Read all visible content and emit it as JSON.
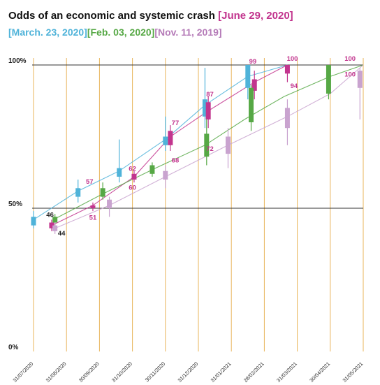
{
  "chart_data": {
    "type": "candlestick-line",
    "title_prefix": "Odds of an economic and systemic crash ",
    "title_series_labels": [
      {
        "text": "[June 29, 2020]",
        "color": "#c2358e"
      },
      {
        "text": "[March. 23, 2020]",
        "color": "#4fb3d9"
      },
      {
        "text": "[Feb. 03, 2020]",
        "color": "#56a845"
      },
      {
        "text": "[Nov. 11, 2019]",
        "color": "#b57bb8"
      }
    ],
    "x_dates": [
      "31/07/2020",
      "31/08/2020",
      "30/09/2020",
      "31/10/2020",
      "30/11/2020",
      "31/12/2020",
      "31/01/2021",
      "28/02/2021",
      "31/03/2021",
      "30/04/2021",
      "31/05/2021"
    ],
    "ylim": [
      0,
      100
    ],
    "y_ticks": [
      {
        "value": 0,
        "label": "0%"
      },
      {
        "value": 50,
        "label": "50%"
      },
      {
        "value": 100,
        "label": "100%"
      }
    ],
    "colors": {
      "jun": "#c2358e",
      "mar": "#4fb3d9",
      "feb": "#56a845",
      "nov": "#c9a3cf",
      "grid_v": "#e8b45a",
      "grid_h": "#333333"
    },
    "series": [
      {
        "key": "mar",
        "color": "#4fb3d9",
        "line": [
          {
            "x": 0,
            "y": 46
          },
          {
            "x": 1.35,
            "y": 56
          },
          {
            "x": 2.6,
            "y": 63
          },
          {
            "x": 4,
            "y": 74
          },
          {
            "x": 5.2,
            "y": 86
          },
          {
            "x": 6.5,
            "y": 96
          },
          {
            "x": 7.7,
            "y": 100
          }
        ],
        "candles": [
          {
            "x": 0,
            "open": 44,
            "close": 47,
            "low": 43,
            "high": 49
          },
          {
            "x": 1.35,
            "open": 54,
            "close": 57,
            "low": 52,
            "high": 60
          },
          {
            "x": 2.6,
            "open": 61,
            "close": 64,
            "low": 59,
            "high": 74
          },
          {
            "x": 4,
            "open": 72,
            "close": 75,
            "low": 70,
            "high": 82
          },
          {
            "x": 5.2,
            "open": 82,
            "close": 88,
            "low": 78,
            "high": 99
          },
          {
            "x": 6.5,
            "open": 92,
            "close": 100,
            "low": 88,
            "high": 100
          }
        ]
      },
      {
        "key": "jun",
        "color": "#c2358e",
        "line": [
          {
            "x": 0.55,
            "y": 44
          },
          {
            "x": 1.8,
            "y": 51
          },
          {
            "x": 3.05,
            "y": 61
          },
          {
            "x": 4.15,
            "y": 75
          },
          {
            "x": 5.3,
            "y": 84
          },
          {
            "x": 6.7,
            "y": 94
          },
          {
            "x": 7.7,
            "y": 100
          }
        ],
        "candles": [
          {
            "x": 0.55,
            "open": 43,
            "close": 45,
            "low": 42,
            "high": 46
          },
          {
            "x": 1.8,
            "open": 50,
            "close": 51,
            "low": 49,
            "high": 52
          },
          {
            "x": 3.05,
            "open": 60,
            "close": 62,
            "low": 59,
            "high": 63
          },
          {
            "x": 4.15,
            "open": 72,
            "close": 77,
            "low": 70,
            "high": 79
          },
          {
            "x": 5.3,
            "open": 81,
            "close": 87,
            "low": 78,
            "high": 89
          },
          {
            "x": 6.7,
            "open": 91,
            "close": 95,
            "low": 88,
            "high": 98
          },
          {
            "x": 7.7,
            "open": 97,
            "close": 100,
            "low": 94,
            "high": 100
          }
        ],
        "labels": [
          {
            "x": 0.85,
            "y": 40.5,
            "text": "44",
            "color": "#222222"
          },
          {
            "x": 1.8,
            "y": 46,
            "text": "51",
            "color": "#c2358e"
          },
          {
            "x": 1.7,
            "y": 58.5,
            "text": "57",
            "color": "#c2358e"
          },
          {
            "x": 3.0,
            "y": 56.5,
            "text": "60",
            "color": "#c2358e"
          },
          {
            "x": 3.0,
            "y": 63,
            "text": "62",
            "color": "#c2358e"
          },
          {
            "x": 4.3,
            "y": 66,
            "text": "68",
            "color": "#c2358e"
          },
          {
            "x": 4.3,
            "y": 79,
            "text": "77",
            "color": "#c2358e"
          },
          {
            "x": 5.35,
            "y": 70,
            "text": "72",
            "color": "#c2358e"
          },
          {
            "x": 5.35,
            "y": 89,
            "text": "87",
            "color": "#c2358e"
          },
          {
            "x": 6.65,
            "y": 100.5,
            "text": "99",
            "color": "#c2358e"
          },
          {
            "x": 7.9,
            "y": 92,
            "text": "94",
            "color": "#c2358e"
          },
          {
            "x": 7.85,
            "y": 101.5,
            "text": "100",
            "color": "#c2358e"
          },
          {
            "x": 9.6,
            "y": 101.5,
            "text": "100",
            "color": "#c2358e"
          },
          {
            "x": 9.6,
            "y": 96,
            "text": "100",
            "color": "#c2358e"
          },
          {
            "x": 0.5,
            "y": 47,
            "text": "46",
            "color": "#222222"
          }
        ]
      },
      {
        "key": "feb",
        "color": "#56a845",
        "line": [
          {
            "x": 0.6,
            "y": 46
          },
          {
            "x": 2.1,
            "y": 55
          },
          {
            "x": 3.7,
            "y": 64
          },
          {
            "x": 5.2,
            "y": 72
          },
          {
            "x": 6.4,
            "y": 81
          },
          {
            "x": 7.6,
            "y": 89
          },
          {
            "x": 9.0,
            "y": 96
          },
          {
            "x": 10.0,
            "y": 100
          }
        ],
        "candles": [
          {
            "x": 0.65,
            "open": 45,
            "close": 47,
            "low": 44,
            "high": 48
          },
          {
            "x": 2.1,
            "open": 54,
            "close": 57,
            "low": 53,
            "high": 59
          },
          {
            "x": 3.6,
            "open": 62,
            "close": 65,
            "low": 61,
            "high": 66
          },
          {
            "x": 5.25,
            "open": 68,
            "close": 76,
            "low": 65,
            "high": 81
          },
          {
            "x": 6.6,
            "open": 80,
            "close": 92,
            "low": 77,
            "high": 93
          },
          {
            "x": 8.95,
            "open": 90,
            "close": 100,
            "low": 88,
            "high": 100
          }
        ]
      },
      {
        "key": "nov",
        "color": "#c9a3cf",
        "line": [
          {
            "x": 0.65,
            "y": 43
          },
          {
            "x": 2.3,
            "y": 51
          },
          {
            "x": 4.0,
            "y": 61
          },
          {
            "x": 5.9,
            "y": 72
          },
          {
            "x": 7.7,
            "y": 82
          },
          {
            "x": 9.0,
            "y": 90
          },
          {
            "x": 10.0,
            "y": 100
          }
        ],
        "candles": [
          {
            "x": 0.65,
            "open": 42,
            "close": 44,
            "low": 41,
            "high": 45
          },
          {
            "x": 2.3,
            "open": 50,
            "close": 53,
            "low": 47,
            "high": 54
          },
          {
            "x": 4.0,
            "open": 60,
            "close": 63,
            "low": 57,
            "high": 65
          },
          {
            "x": 5.9,
            "open": 69,
            "close": 75,
            "low": 64,
            "high": 78
          },
          {
            "x": 7.7,
            "open": 78,
            "close": 85,
            "low": 72,
            "high": 88
          },
          {
            "x": 9.9,
            "open": 92,
            "close": 98,
            "low": 81,
            "high": 99
          }
        ]
      }
    ]
  }
}
